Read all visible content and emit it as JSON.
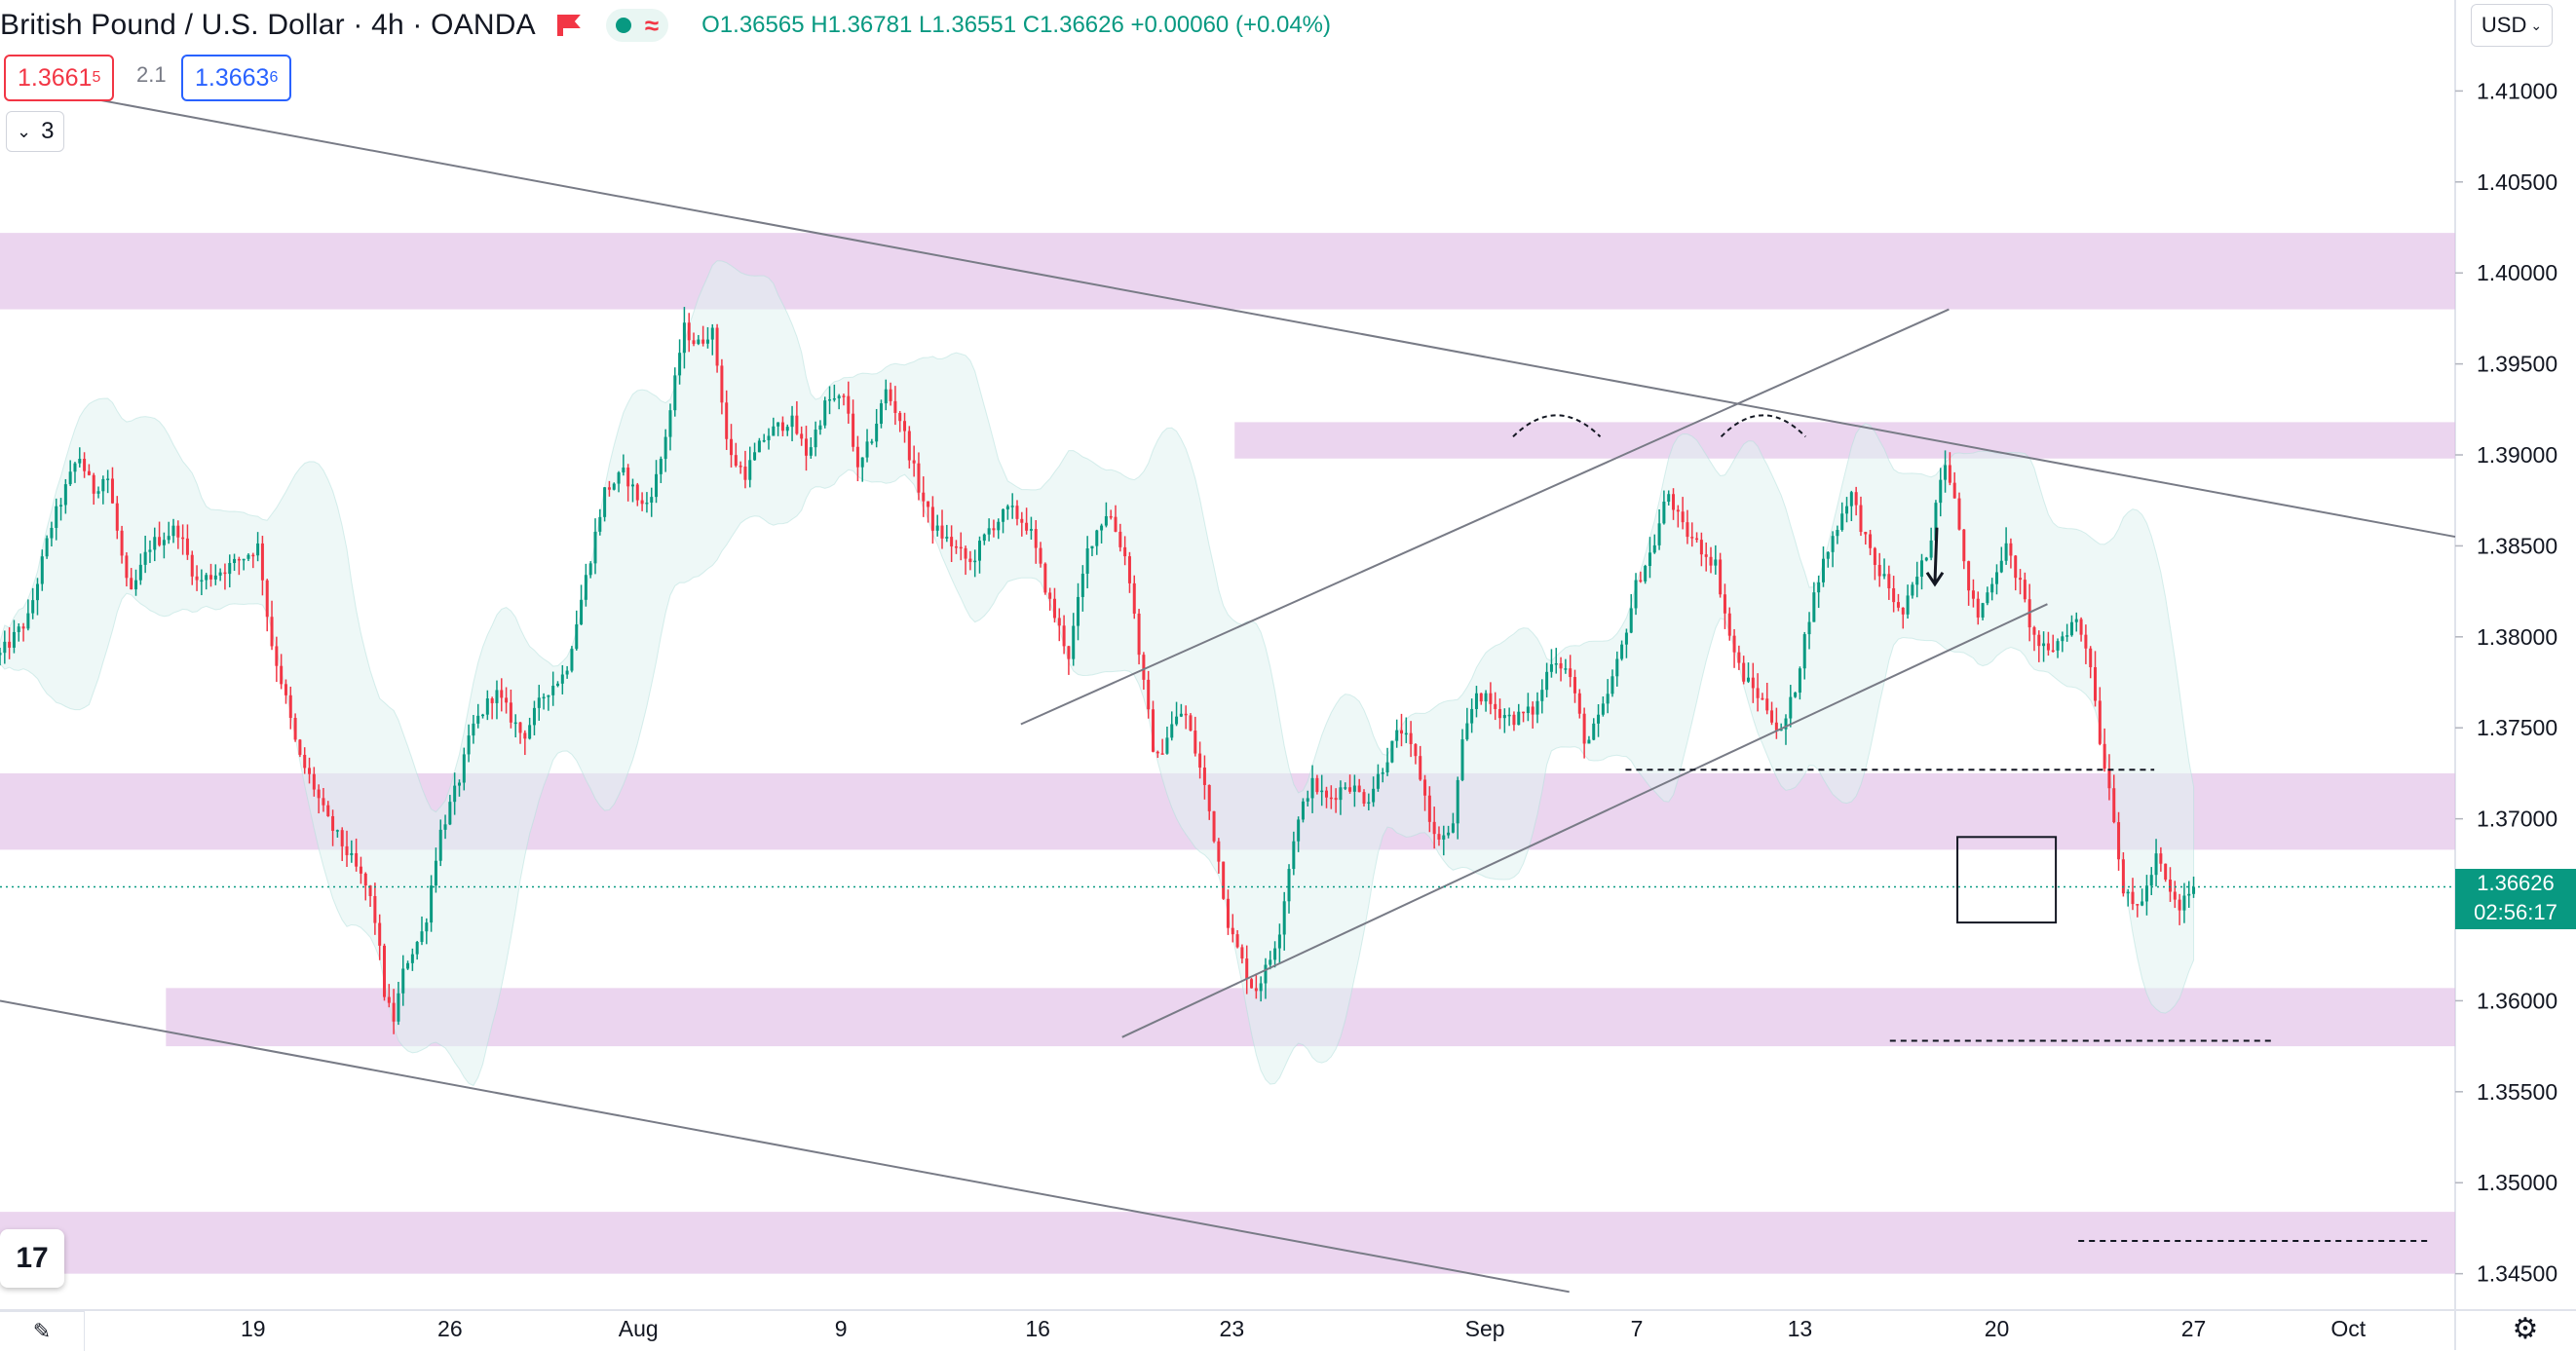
{
  "header": {
    "symbol_title": "British Pound / U.S. Dollar · 4h · OANDA",
    "ohlc": "O1.36565 H1.36781 L1.36551 C1.36626 +0.00060 (+0.04%)"
  },
  "quote": {
    "bid_main": "1.3661",
    "bid_sup": "5",
    "spread": "2.1",
    "ask_main": "1.3663",
    "ask_sup": "6"
  },
  "indicators_toggle": {
    "count": "3"
  },
  "currency_select": "USD",
  "logo_text": "17",
  "last_price": {
    "value": "1.36626",
    "countdown": "02:56:17"
  },
  "colors": {
    "up": "#089981",
    "down": "#f23645",
    "zone": "#e1bee7",
    "band_fill": "#e0f2f1"
  },
  "icons": [
    "flag-icon",
    "status-dot-icon",
    "wave-icon",
    "chevron-down-icon",
    "tradingview-logo-icon",
    "pen-icon",
    "gear-icon",
    "arrow-down-icon"
  ],
  "chart_data": {
    "type": "candlestick",
    "title": "British Pound / U.S. Dollar · 4h · OANDA",
    "timeframe": "4h",
    "currency": "USD",
    "y_ticks": [
      "1.41000",
      "1.40500",
      "1.40000",
      "1.39500",
      "1.39000",
      "1.38500",
      "1.38000",
      "1.37500",
      "1.37000",
      "1.36500",
      "1.36000",
      "1.35500",
      "1.35000",
      "1.34500"
    ],
    "x_ticks": [
      {
        "label": "19",
        "d": 6.2
      },
      {
        "label": "26",
        "d": 13.2
      },
      {
        "label": "Aug",
        "d": 19.9
      },
      {
        "label": "9",
        "d": 27.1
      },
      {
        "label": "16",
        "d": 34.1
      },
      {
        "label": "23",
        "d": 41.0
      },
      {
        "label": "Sep",
        "d": 50.0
      },
      {
        "label": "7",
        "d": 55.4
      },
      {
        "label": "13",
        "d": 61.2
      },
      {
        "label": "20",
        "d": 68.2
      },
      {
        "label": "27",
        "d": 75.2
      },
      {
        "label": "Oct",
        "d": 80.7
      }
    ],
    "ylim": [
      1.343,
      1.415
    ],
    "xlim": [
      -2.8,
      84.5
    ],
    "last_close": 1.36626,
    "path_anchors": [
      [
        -2.8,
        1.379
      ],
      [
        -1.8,
        1.381
      ],
      [
        -1.0,
        1.386
      ],
      [
        0.0,
        1.39
      ],
      [
        0.5,
        1.388
      ],
      [
        1.0,
        1.389
      ],
      [
        1.8,
        1.382
      ],
      [
        2.5,
        1.385
      ],
      [
        3.5,
        1.386
      ],
      [
        4.2,
        1.383
      ],
      [
        5.5,
        1.384
      ],
      [
        6.4,
        1.385
      ],
      [
        6.8,
        1.38
      ],
      [
        7.3,
        1.377
      ],
      [
        7.8,
        1.3735
      ],
      [
        8.3,
        1.372
      ],
      [
        8.8,
        1.37
      ],
      [
        9.6,
        1.368
      ],
      [
        10.3,
        1.366
      ],
      [
        10.6,
        1.364
      ],
      [
        10.9,
        1.36
      ],
      [
        11.2,
        1.359
      ],
      [
        11.6,
        1.362
      ],
      [
        12.3,
        1.364
      ],
      [
        12.8,
        1.369
      ],
      [
        13.5,
        1.372
      ],
      [
        14.0,
        1.375
      ],
      [
        14.8,
        1.377
      ],
      [
        15.8,
        1.3745
      ],
      [
        16.6,
        1.377
      ],
      [
        17.3,
        1.378
      ],
      [
        18.0,
        1.383
      ],
      [
        18.7,
        1.388
      ],
      [
        19.4,
        1.389
      ],
      [
        20.1,
        1.387
      ],
      [
        20.6,
        1.389
      ],
      [
        21.1,
        1.393
      ],
      [
        21.5,
        1.397
      ],
      [
        22.0,
        1.396
      ],
      [
        22.5,
        1.397
      ],
      [
        22.8,
        1.394
      ],
      [
        23.1,
        1.39
      ],
      [
        23.7,
        1.389
      ],
      [
        24.4,
        1.391
      ],
      [
        25.3,
        1.392
      ],
      [
        25.9,
        1.39
      ],
      [
        26.6,
        1.393
      ],
      [
        27.3,
        1.393
      ],
      [
        27.7,
        1.389
      ],
      [
        28.2,
        1.391
      ],
      [
        28.7,
        1.3935
      ],
      [
        29.2,
        1.392
      ],
      [
        29.9,
        1.388
      ],
      [
        30.4,
        1.386
      ],
      [
        31.1,
        1.385
      ],
      [
        31.7,
        1.384
      ],
      [
        32.4,
        1.386
      ],
      [
        33.1,
        1.387
      ],
      [
        33.8,
        1.386
      ],
      [
        34.5,
        1.382
      ],
      [
        35.2,
        1.379
      ],
      [
        35.9,
        1.385
      ],
      [
        36.6,
        1.387
      ],
      [
        37.3,
        1.384
      ],
      [
        37.8,
        1.378
      ],
      [
        38.3,
        1.373
      ],
      [
        38.8,
        1.375
      ],
      [
        39.3,
        1.376
      ],
      [
        40.0,
        1.372
      ],
      [
        40.5,
        1.368
      ],
      [
        40.9,
        1.364
      ],
      [
        41.4,
        1.362
      ],
      [
        41.8,
        1.3605
      ],
      [
        42.3,
        1.362
      ],
      [
        42.7,
        1.364
      ],
      [
        43.2,
        1.369
      ],
      [
        43.8,
        1.372
      ],
      [
        44.4,
        1.371
      ],
      [
        45.1,
        1.372
      ],
      [
        45.8,
        1.371
      ],
      [
        46.4,
        1.373
      ],
      [
        47.0,
        1.375
      ],
      [
        47.6,
        1.373
      ],
      [
        48.2,
        1.369
      ],
      [
        48.8,
        1.369
      ],
      [
        49.2,
        1.374
      ],
      [
        49.7,
        1.377
      ],
      [
        50.4,
        1.376
      ],
      [
        51.0,
        1.3755
      ],
      [
        51.8,
        1.376
      ],
      [
        52.4,
        1.379
      ],
      [
        53.0,
        1.378
      ],
      [
        53.6,
        1.374
      ],
      [
        54.2,
        1.376
      ],
      [
        54.8,
        1.379
      ],
      [
        55.4,
        1.383
      ],
      [
        56.0,
        1.385
      ],
      [
        56.5,
        1.388
      ],
      [
        57.0,
        1.386
      ],
      [
        57.6,
        1.385
      ],
      [
        58.2,
        1.384
      ],
      [
        58.7,
        1.38
      ],
      [
        59.1,
        1.378
      ],
      [
        59.6,
        1.377
      ],
      [
        60.1,
        1.376
      ],
      [
        60.5,
        1.3745
      ],
      [
        61.0,
        1.377
      ],
      [
        61.5,
        1.381
      ],
      [
        62.0,
        1.384
      ],
      [
        62.5,
        1.386
      ],
      [
        63.0,
        1.388
      ],
      [
        63.4,
        1.386
      ],
      [
        63.8,
        1.384
      ],
      [
        64.3,
        1.383
      ],
      [
        64.8,
        1.381
      ],
      [
        65.3,
        1.383
      ],
      [
        65.8,
        1.385
      ],
      [
        66.3,
        1.39
      ],
      [
        66.7,
        1.388
      ],
      [
        67.0,
        1.384
      ],
      [
        67.5,
        1.381
      ],
      [
        68.0,
        1.383
      ],
      [
        68.5,
        1.385
      ],
      [
        69.0,
        1.383
      ],
      [
        69.5,
        1.38
      ],
      [
        70.0,
        1.379
      ],
      [
        70.5,
        1.38
      ],
      [
        71.0,
        1.381
      ],
      [
        71.5,
        1.379
      ],
      [
        71.9,
        1.374
      ],
      [
        72.3,
        1.371
      ],
      [
        72.7,
        1.366
      ],
      [
        73.1,
        1.365
      ],
      [
        73.5,
        1.366
      ],
      [
        73.9,
        1.368
      ],
      [
        74.3,
        1.366
      ],
      [
        74.7,
        1.365
      ],
      [
        75.0,
        1.366
      ],
      [
        75.3,
        1.36626
      ]
    ],
    "zones": [
      {
        "y0": 1.398,
        "y1": 1.4022,
        "d0": -2.8,
        "d1": 84.5
      },
      {
        "y0": 1.3898,
        "y1": 1.3918,
        "d0": 41.1,
        "d1": 84.5
      },
      {
        "y0": 1.3683,
        "y1": 1.3725,
        "d0": -2.8,
        "d1": 84.5
      },
      {
        "y0": 1.3575,
        "y1": 1.3607,
        "d0": 3.1,
        "d1": 84.5
      },
      {
        "y0": 1.345,
        "y1": 1.3484,
        "d0": -2.8,
        "d1": 84.5
      }
    ],
    "trendlines": [
      {
        "from": [
          -1.0,
          1.41
        ],
        "to": [
          84.5,
          1.3855
        ]
      },
      {
        "from": [
          -2.8,
          1.36
        ],
        "to": [
          53.0,
          1.344
        ]
      },
      {
        "from": [
          33.5,
          1.3752
        ],
        "to": [
          66.5,
          1.398
        ]
      },
      {
        "from": [
          37.1,
          1.358
        ],
        "to": [
          70.0,
          1.3818
        ]
      }
    ],
    "dashed_levels": [
      {
        "y": 1.3727,
        "d0": 55.0,
        "d1": 73.8
      },
      {
        "y": 1.3578,
        "d0": 64.4,
        "d1": 78.0
      },
      {
        "y": 1.3468,
        "d0": 71.1,
        "d1": 83.6
      }
    ],
    "arcs": [
      {
        "d0": 51.0,
        "d1": 54.1,
        "y": 1.391
      },
      {
        "d0": 58.4,
        "d1": 61.4,
        "y": 1.391
      }
    ],
    "box": {
      "d0": 66.8,
      "d1": 70.3,
      "y0": 1.3643,
      "y1": 1.369
    },
    "arrow": {
      "d": 66.0,
      "y_from": 1.386,
      "y_to": 1.383
    }
  }
}
